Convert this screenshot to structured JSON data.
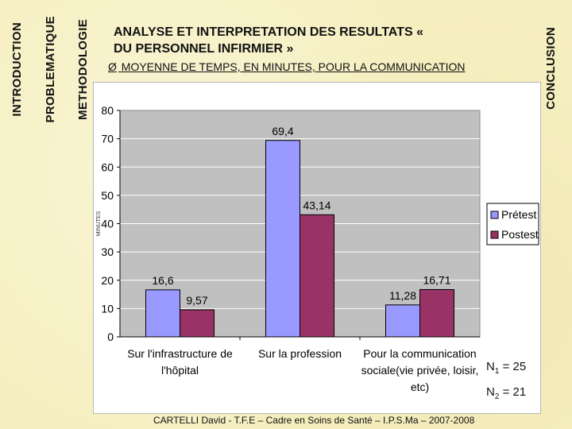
{
  "nav": {
    "introduction": "INTRODUCTION",
    "problematique": "PROBLEMATIQUE",
    "methodologie": "METHODOLOGIE",
    "conclusion": "CONCLUSION"
  },
  "header": {
    "title_line1": "ANALYSE ET INTERPRETATION DES RESULTATS «",
    "title_line2": "DU PERSONNEL INFIRMIER »",
    "bullet": "Ø",
    "subtitle": "MOYENNE DE TEMPS, EN MINUTES, POUR LA COMMUNICATION"
  },
  "notes": {
    "n1_label": "N",
    "n1_sub": "1",
    "n1_value": " = 25",
    "n2_label": "N",
    "n2_sub": "2",
    "n2_value": " = 21"
  },
  "footer": "CARTELLI David - T.F.E – Cadre en Soins de Santé – I.P.S.Ma – 2007-2008",
  "colors": {
    "pretest": "#9999ff",
    "posttest": "#993366",
    "plot_bg": "#c0c0c0",
    "grid": "#ffffff"
  },
  "chart_data": {
    "type": "bar",
    "ylabel": "MINUTES",
    "ylim": [
      0,
      80
    ],
    "yticks": [
      0,
      10,
      20,
      30,
      40,
      50,
      60,
      70,
      80
    ],
    "grid": true,
    "legend_position": "right",
    "categories": [
      [
        "Sur l'infrastructure de",
        "l'hôpital"
      ],
      [
        "Sur la profession"
      ],
      [
        "Pour la communication",
        "sociale(vie privée, loisir,",
        "etc)"
      ]
    ],
    "series": [
      {
        "name": "Prétest",
        "values": [
          16.6,
          69.4,
          11.28
        ],
        "labels": [
          "16,6",
          "69,4",
          "11,28"
        ]
      },
      {
        "name": "Postest",
        "values": [
          9.57,
          43.14,
          16.71
        ],
        "labels": [
          "9,57",
          "43,14",
          "16,71"
        ]
      }
    ]
  }
}
